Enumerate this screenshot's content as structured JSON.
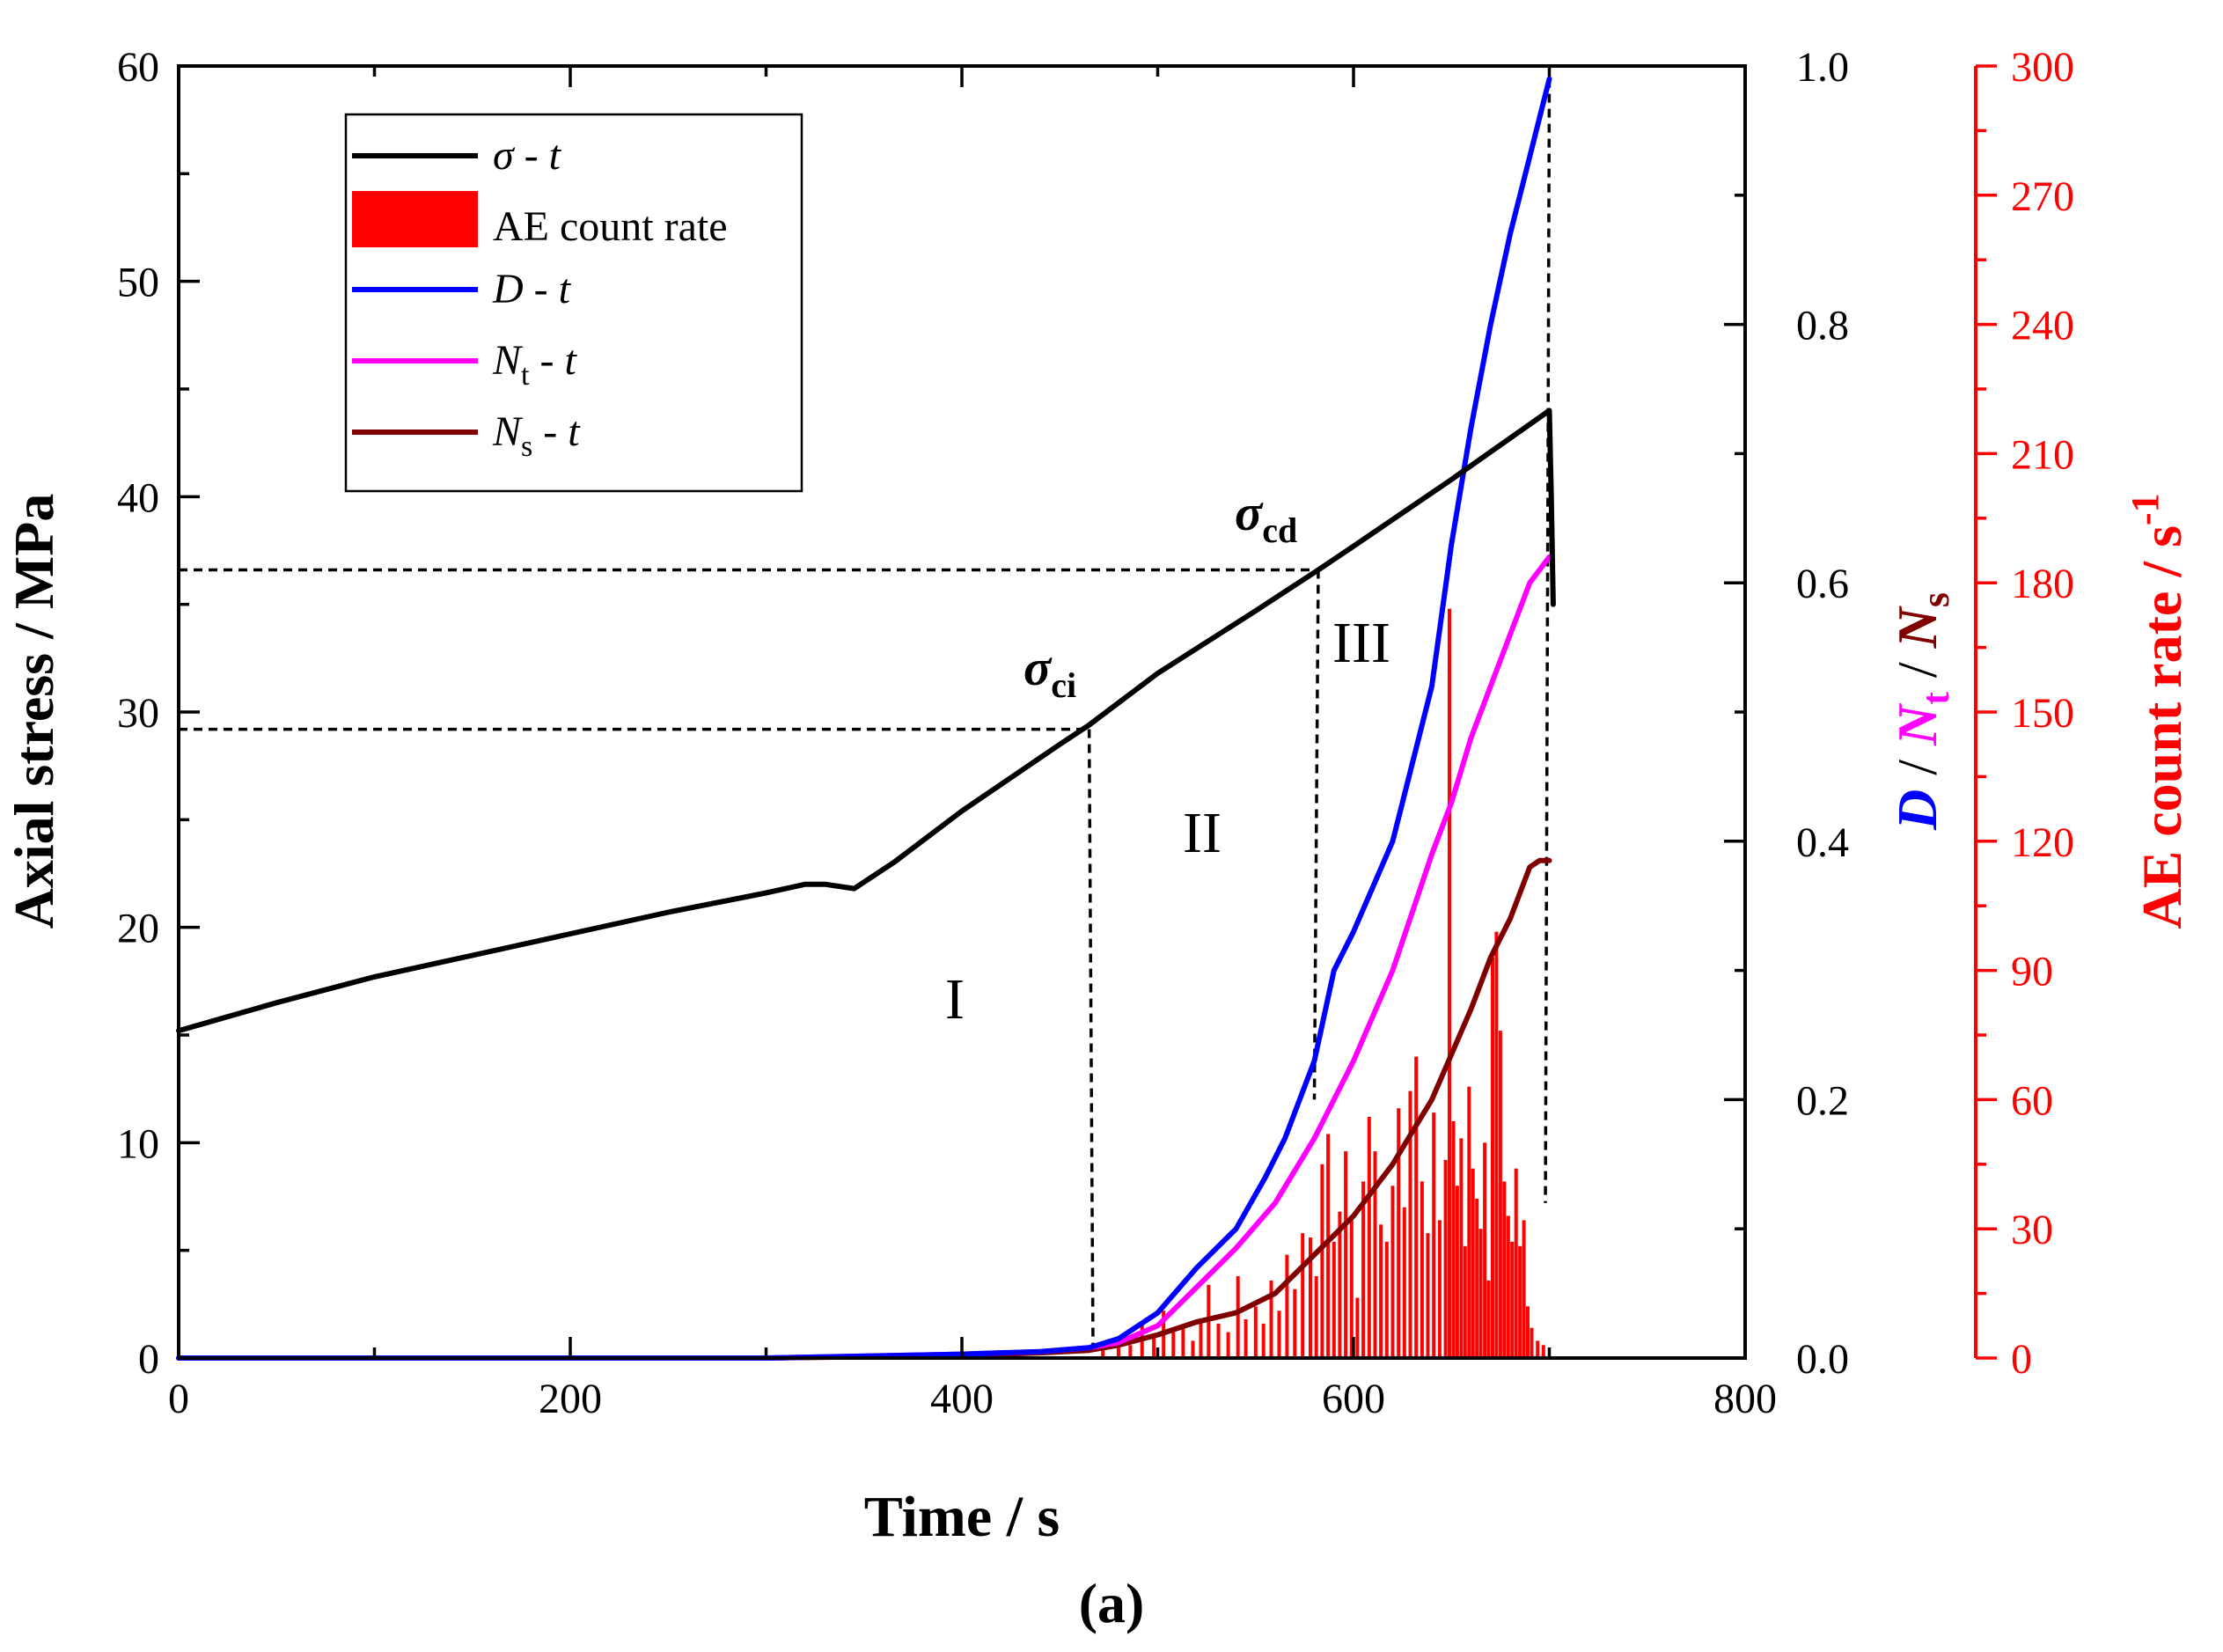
{
  "chart_data": {
    "type": "line",
    "panel_label": "(a)",
    "xlabel": "Time / s",
    "xlim": [
      0,
      800
    ],
    "x_ticks": [
      "0",
      "200",
      "400",
      "600",
      "800"
    ],
    "y_left": {
      "label": "Axial stress / MPa",
      "lim": [
        0,
        60
      ],
      "ticks": [
        "0",
        "10",
        "20",
        "30",
        "40",
        "50",
        "60"
      ]
    },
    "y_mid": {
      "label_parts": [
        "D",
        " / ",
        "N",
        "t",
        " / ",
        "N",
        "s"
      ],
      "lim": [
        0,
        1.0
      ],
      "ticks": [
        "0.0",
        "0.2",
        "0.4",
        "0.6",
        "0.8",
        "1.0"
      ]
    },
    "y_right": {
      "label": "AE count rate / s",
      "label_sup": "-1",
      "lim": [
        0,
        300
      ],
      "ticks": [
        "0",
        "30",
        "60",
        "90",
        "120",
        "150",
        "180",
        "210",
        "240",
        "270",
        "300"
      ]
    },
    "colors": {
      "stress": "#000000",
      "ae": "#ff0000",
      "D": "#0000ff",
      "Nt": "#ff00ff",
      "Ns": "#800000"
    },
    "legend": {
      "placement": "top-left",
      "entries": [
        {
          "key": "stress",
          "parts": [
            "σ",
            " - ",
            "t"
          ]
        },
        {
          "key": "ae",
          "parts": [
            "AE count rate"
          ]
        },
        {
          "key": "D",
          "parts": [
            "D",
            " - ",
            "t"
          ]
        },
        {
          "key": "Nt",
          "parts": [
            "N",
            "t",
            " - ",
            "t"
          ]
        },
        {
          "key": "Ns",
          "parts": [
            "N",
            "s",
            " - ",
            "t"
          ]
        }
      ]
    },
    "series": [
      {
        "name": "σ - t",
        "axis": "left",
        "key": "stress",
        "x": [
          0,
          50,
          100,
          150,
          200,
          250,
          300,
          320,
          330,
          345,
          365,
          400,
          450,
          465,
          500,
          550,
          582,
          600,
          650,
          700,
          701,
          702
        ],
        "y": [
          15.2,
          16.5,
          17.7,
          18.7,
          19.7,
          20.7,
          21.6,
          22.0,
          22.0,
          21.8,
          23.0,
          25.4,
          28.5,
          29.4,
          31.8,
          34.7,
          36.6,
          37.7,
          40.8,
          44.0,
          40.0,
          35.0
        ]
      },
      {
        "name": "D - t",
        "axis": "mid",
        "key": "D",
        "x": [
          0,
          300,
          400,
          440,
          465,
          480,
          500,
          520,
          540,
          555,
          565,
          580,
          590,
          600,
          620,
          640,
          650,
          660,
          670,
          680,
          690,
          700
        ],
        "y": [
          0,
          0.0,
          0.003,
          0.005,
          0.008,
          0.015,
          0.035,
          0.07,
          0.1,
          0.14,
          0.17,
          0.23,
          0.3,
          0.33,
          0.4,
          0.52,
          0.63,
          0.72,
          0.8,
          0.87,
          0.93,
          0.99
        ]
      },
      {
        "name": "Nt - t",
        "axis": "mid",
        "key": "Nt",
        "x": [
          0,
          300,
          400,
          440,
          465,
          480,
          500,
          520,
          540,
          560,
          580,
          600,
          620,
          640,
          650,
          660,
          670,
          680,
          690,
          700
        ],
        "y": [
          0,
          0.0,
          0.003,
          0.005,
          0.008,
          0.012,
          0.025,
          0.055,
          0.085,
          0.12,
          0.17,
          0.23,
          0.3,
          0.39,
          0.43,
          0.48,
          0.52,
          0.56,
          0.6,
          0.62
        ]
      },
      {
        "name": "Ns - t",
        "axis": "mid",
        "key": "Ns",
        "x": [
          0,
          300,
          400,
          440,
          465,
          480,
          500,
          520,
          540,
          560,
          580,
          600,
          620,
          640,
          660,
          670,
          680,
          690,
          695,
          700
        ],
        "y": [
          0,
          0.0,
          0.002,
          0.004,
          0.006,
          0.01,
          0.018,
          0.028,
          0.035,
          0.05,
          0.08,
          0.11,
          0.15,
          0.2,
          0.27,
          0.31,
          0.34,
          0.38,
          0.385,
          0.385
        ]
      }
    ],
    "ae_bars": {
      "axis": "right",
      "key": "ae",
      "x": [
        472,
        480,
        486,
        492,
        498,
        503,
        508,
        513,
        518,
        522,
        526,
        531,
        536,
        541,
        545,
        550,
        554,
        558,
        562,
        566,
        570,
        574,
        578,
        581,
        584,
        587,
        590,
        593,
        596,
        599,
        602,
        605,
        608,
        611,
        614,
        617,
        620,
        623,
        626,
        629,
        632,
        635,
        638,
        641,
        644,
        647,
        649,
        651,
        653,
        655,
        657,
        659,
        661,
        663,
        665,
        667,
        669,
        671,
        673,
        675,
        677,
        679,
        681,
        683,
        685,
        687,
        689,
        691,
        694,
        697
      ],
      "y": [
        2,
        4,
        3,
        8,
        5,
        11,
        6,
        7,
        4,
        9,
        17,
        8,
        6,
        19,
        9,
        12,
        8,
        18,
        11,
        24,
        16,
        29,
        28,
        19,
        45,
        52,
        27,
        34,
        48,
        33,
        14,
        41,
        56,
        48,
        31,
        27,
        40,
        58,
        35,
        62,
        70,
        41,
        29,
        57,
        32,
        46,
        174,
        55,
        40,
        51,
        26,
        63,
        44,
        37,
        30,
        50,
        18,
        93,
        99,
        76,
        41,
        33,
        27,
        44,
        26,
        32,
        12,
        7,
        4,
        3
      ]
    },
    "annotations": [
      {
        "symbol": "σ",
        "sub": "ci",
        "time": 465,
        "stress": 29.2
      },
      {
        "symbol": "σ",
        "sub": "cd",
        "time": 582,
        "stress": 36.6
      }
    ],
    "regions": [
      "I",
      "II",
      "III"
    ]
  }
}
